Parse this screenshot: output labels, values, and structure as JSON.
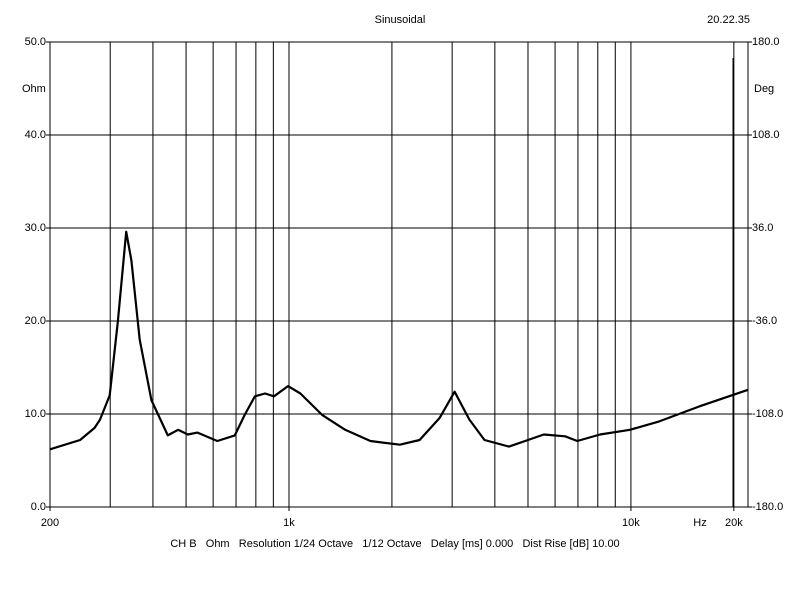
{
  "chart_data": {
    "type": "line",
    "title": "Sinusoidal",
    "timestamp": "20.22.35",
    "ylabel": "Ohm",
    "y2label": "Deg",
    "xlabel": "Hz",
    "caption": "CH B   Ohm   Resolution 1/24 Octave   1/12 Octave   Delay [ms] 0.000   Dist Rise [dB] 10.00",
    "xscale": "log",
    "grid": true,
    "xlim": [
      200,
      22000
    ],
    "xticks": [
      200,
      {
        "value": 1000,
        "label": "1k"
      },
      {
        "value": 10000,
        "label": "10k"
      },
      {
        "value": 20000,
        "label": "20k"
      }
    ],
    "xgrid": [
      300,
      400,
      500,
      600,
      700,
      800,
      900,
      1000,
      2000,
      3000,
      4000,
      5000,
      6000,
      7000,
      8000,
      9000,
      10000,
      20000
    ],
    "ylim": [
      0,
      50
    ],
    "yticks": [
      {
        "value": 0,
        "label": "0.0"
      },
      {
        "value": 10,
        "label": "10.0"
      },
      {
        "value": 20,
        "label": "20.0"
      },
      {
        "value": 30,
        "label": "30.0"
      },
      {
        "value": 40,
        "label": "40.0"
      },
      {
        "value": 50,
        "label": "50.0"
      }
    ],
    "y2lim": [
      -180,
      180
    ],
    "y2ticks": [
      {
        "value": -180,
        "label": "-180.0"
      },
      {
        "value": -108,
        "label": "-108.0"
      },
      {
        "value": -36,
        "label": "-36.0"
      },
      {
        "value": 36,
        "label": "36.0"
      },
      {
        "value": 108,
        "label": "108.0"
      },
      {
        "value": 180,
        "label": "180.0"
      }
    ],
    "series": [
      {
        "name": "Ohm",
        "color": "#000000",
        "x": [
          200,
          245,
          270,
          280,
          299,
          316,
          334,
          346,
          366,
          396,
          442,
          474,
          506,
          540,
          617,
          694,
          742,
          795,
          851,
          904,
          993,
          1080,
          1250,
          1460,
          1730,
          2110,
          2410,
          2760,
          3050,
          3370,
          3730,
          4400,
          5000,
          5560,
          6420,
          6970,
          8120,
          9930,
          12100,
          15800,
          22000
        ],
        "values": [
          6.2,
          7.2,
          8.5,
          9.4,
          12,
          20,
          29.6,
          26.5,
          18,
          11.5,
          7.7,
          8.3,
          7.8,
          8.0,
          7.1,
          7.7,
          9.9,
          11.9,
          12.2,
          11.9,
          13.0,
          12.2,
          9.9,
          8.3,
          7.1,
          6.7,
          7.2,
          9.6,
          12.4,
          9.4,
          7.2,
          6.5,
          7.2,
          7.8,
          7.6,
          7.1,
          7.8,
          8.3,
          9.2,
          10.8,
          12.6
        ]
      }
    ]
  }
}
